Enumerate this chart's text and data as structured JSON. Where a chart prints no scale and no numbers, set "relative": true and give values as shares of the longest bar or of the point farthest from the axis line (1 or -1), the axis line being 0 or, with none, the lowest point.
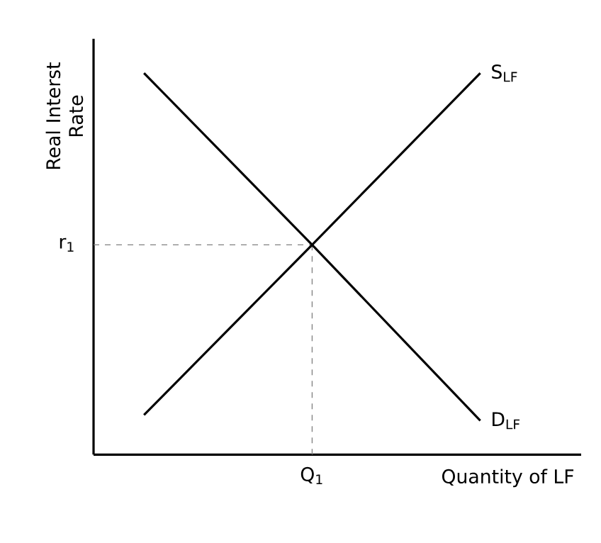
{
  "chart_data": {
    "type": "line",
    "relative": true,
    "xlabel": "Quantity of LF",
    "ylabel": "Real Interst Rate",
    "categories": [
      null,
      null,
      null
    ],
    "series": [
      {
        "name": "S$_{LF}$",
        "color": "#000000",
        "values": [
          0.104,
          0.55,
          1.0
        ]
      },
      {
        "name": "D$_{LF}$",
        "color": "#000000",
        "values": [
          1.0,
          0.55,
          0.089
        ]
      }
    ],
    "ref_lines": [
      {
        "axis": "y",
        "value": 0.55,
        "label": "r$_{1}$",
        "color": "#808080",
        "line_style": "dashed"
      }
    ],
    "annotations": [
      "Q$_{1}$"
    ],
    "marker": "none",
    "line_style": "solid",
    "legend": false
  }
}
